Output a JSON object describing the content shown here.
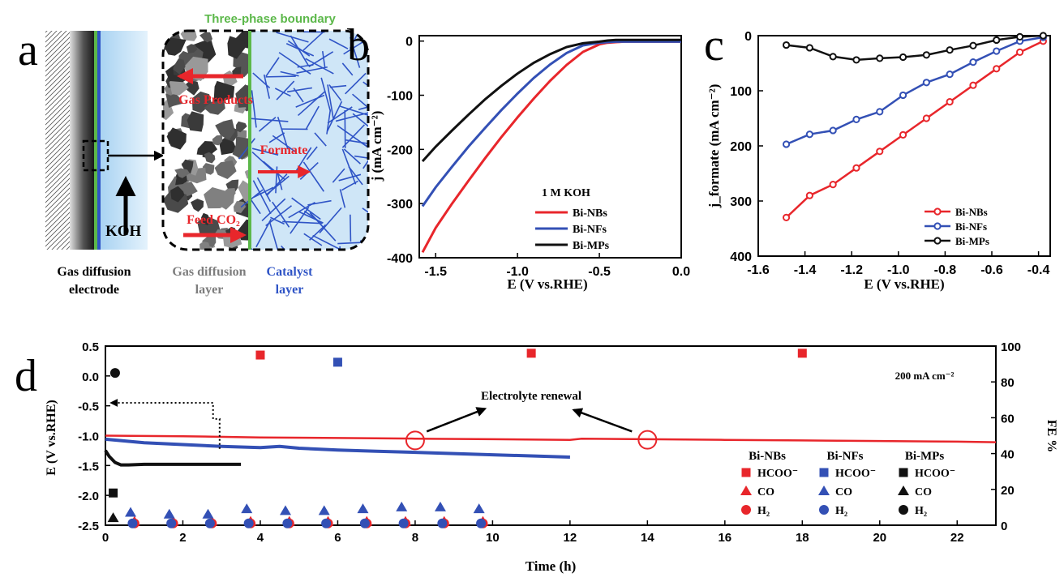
{
  "colors": {
    "bi_nbs": "#e8262b",
    "bi_nfs": "#3350b5",
    "bi_mps": "#111111",
    "boundary": "#5cb84a",
    "catalyst": "#2f54c6",
    "gas": "#7d7d7d",
    "electrolyte": "#cfe6f7"
  },
  "panel_letters": [
    "a",
    "b",
    "c",
    "d"
  ],
  "schematic": {
    "boundary_title": "Three-phase boundary",
    "gas_products": "Gas Products",
    "formate": "Formate",
    "feed_co2": "Feed CO₂",
    "koh": "KOH",
    "gde_label_1": "Gas diffusion",
    "gde_label_2": "electrode",
    "gdl_label_1": "Gas diffusion",
    "gdl_label_2": "layer",
    "cat_label_1": "Catalyst",
    "cat_label_2": "layer"
  },
  "chart_data": [
    {
      "panel": "b",
      "type": "line",
      "xlabel": "E (V vs.RHE)",
      "ylabel": "j (mA cm⁻²)",
      "xlim": [
        -1.6,
        0.0
      ],
      "ylim": [
        -400,
        10
      ],
      "xticks": [
        -1.5,
        -1.0,
        -0.5,
        0.0
      ],
      "xtick_labels": [
        "-1.5",
        "-1.0",
        "-0.5",
        "0.0"
      ],
      "yticks": [
        0,
        -100,
        -200,
        -300,
        -400
      ],
      "ytick_labels": [
        "0",
        "-100",
        "-200",
        "-300",
        "-400"
      ],
      "legend_title": "1 M KOH",
      "legend_position": "lower-right",
      "series": [
        {
          "name": "Bi-NBs",
          "x": [
            -1.58,
            -1.5,
            -1.4,
            -1.3,
            -1.2,
            -1.1,
            -1.0,
            -0.9,
            -0.8,
            -0.7,
            -0.6,
            -0.5,
            -0.45,
            -0.4,
            -0.35,
            -0.3,
            0.0
          ],
          "y": [
            -390,
            -345,
            -300,
            -258,
            -217,
            -178,
            -141,
            -106,
            -73,
            -44,
            -20,
            -6,
            -3,
            -2,
            -1,
            -1,
            -1
          ]
        },
        {
          "name": "Bi-NFs",
          "x": [
            -1.58,
            -1.5,
            -1.4,
            -1.3,
            -1.2,
            -1.1,
            -1.0,
            -0.9,
            -0.8,
            -0.7,
            -0.6,
            -0.5,
            -0.45,
            -0.4,
            -0.3,
            0.0
          ],
          "y": [
            -305,
            -270,
            -232,
            -195,
            -161,
            -128,
            -97,
            -68,
            -43,
            -22,
            -8,
            -3,
            -2,
            -1,
            -1,
            -1
          ]
        },
        {
          "name": "Bi-MPs",
          "x": [
            -1.58,
            -1.5,
            -1.4,
            -1.3,
            -1.2,
            -1.1,
            -1.0,
            -0.9,
            -0.8,
            -0.7,
            -0.6,
            -0.5,
            -0.45,
            -0.4,
            -0.35,
            -0.3,
            0.0
          ],
          "y": [
            -222,
            -195,
            -165,
            -136,
            -108,
            -83,
            -60,
            -40,
            -24,
            -11,
            -4,
            -1,
            1,
            2,
            2,
            2,
            2
          ]
        }
      ]
    },
    {
      "panel": "c",
      "type": "line",
      "xlabel": "E (V vs.RHE)",
      "ylabel": "j_formate (mA cm⁻²)",
      "xlim": [
        -1.6,
        -0.35
      ],
      "ylim": [
        400,
        0
      ],
      "xticks": [
        -1.6,
        -1.4,
        -1.2,
        -1.0,
        -0.8,
        -0.6,
        -0.4
      ],
      "xtick_labels": [
        "-1.6",
        "-1.4",
        "-1.2",
        "-1.0",
        "-0.8",
        "-0.6",
        "-0.4"
      ],
      "yticks": [
        0,
        100,
        200,
        300,
        400
      ],
      "ytick_labels": [
        "0",
        "100",
        "200",
        "300",
        "400"
      ],
      "legend_position": "lower-right",
      "x": [
        -1.48,
        -1.38,
        -1.28,
        -1.18,
        -1.08,
        -0.98,
        -0.88,
        -0.78,
        -0.68,
        -0.58,
        -0.48,
        -0.38
      ],
      "series": [
        {
          "name": "Bi-NBs",
          "values": [
            330,
            290,
            270,
            240,
            210,
            180,
            150,
            120,
            90,
            60,
            30,
            10
          ]
        },
        {
          "name": "Bi-NFs",
          "values": [
            197,
            179,
            172,
            152,
            138,
            108,
            85,
            70,
            48,
            28,
            10,
            3
          ]
        },
        {
          "name": "Bi-MPs",
          "values": [
            17,
            22,
            38,
            44,
            41,
            39,
            35,
            26,
            18,
            8,
            2,
            0
          ]
        }
      ]
    },
    {
      "panel": "d",
      "type": "line",
      "xlabel": "Time (h)",
      "ylabel": "E (V vs.RHE)",
      "ylabel_right": "FE %",
      "annotation_current": "200 mA cm⁻²",
      "annotation_renewal": "Electrolyte renewal",
      "renewal_times": [
        8,
        14
      ],
      "xlim": [
        0,
        23
      ],
      "ylim": [
        -2.5,
        0.5
      ],
      "ylim_right": [
        0,
        100
      ],
      "xticks": [
        0,
        2,
        4,
        6,
        8,
        10,
        12,
        14,
        16,
        18,
        20,
        22
      ],
      "xtick_labels": [
        "0",
        "2",
        "4",
        "6",
        "8",
        "10",
        "12",
        "14",
        "16",
        "18",
        "20",
        "22"
      ],
      "yticks": [
        0.5,
        0.0,
        -0.5,
        -1.0,
        -1.5,
        -2.0,
        -2.5
      ],
      "ytick_labels": [
        "0.5",
        "0.0",
        "-0.5",
        "-1.0",
        "-1.5",
        "-2.0",
        "-2.5"
      ],
      "yticks_right": [
        0,
        20,
        40,
        60,
        80,
        100
      ],
      "ytick_labels_right": [
        "0",
        "20",
        "40",
        "60",
        "80",
        "100"
      ],
      "potential_series": [
        {
          "name": "Bi-NBs",
          "x": [
            0,
            2,
            4,
            6,
            8,
            10,
            12,
            12.3,
            14,
            16,
            18,
            20,
            22,
            23
          ],
          "y": [
            -1.0,
            -1.01,
            -1.03,
            -1.04,
            -1.05,
            -1.06,
            -1.07,
            -1.05,
            -1.06,
            -1.07,
            -1.08,
            -1.09,
            -1.1,
            -1.11
          ]
        },
        {
          "name": "Bi-NFs",
          "x": [
            0,
            1,
            2,
            3,
            4,
            4.5,
            5,
            6,
            7,
            8,
            9,
            10,
            11,
            12
          ],
          "y": [
            -1.06,
            -1.12,
            -1.15,
            -1.18,
            -1.2,
            -1.18,
            -1.21,
            -1.24,
            -1.26,
            -1.28,
            -1.3,
            -1.32,
            -1.34,
            -1.36
          ]
        },
        {
          "name": "Bi-MPs",
          "x": [
            0,
            0.1,
            0.25,
            0.4,
            0.6,
            1,
            2,
            3.5
          ],
          "y": [
            -1.25,
            -1.35,
            -1.45,
            -1.49,
            -1.49,
            -1.48,
            -1.48,
            -1.48
          ]
        }
      ],
      "fe_points": [
        {
          "series": "Bi-NBs",
          "product": "HCOO⁻",
          "x": [
            4,
            11,
            18
          ],
          "y": [
            95,
            96,
            96
          ]
        },
        {
          "series": "Bi-NFs",
          "product": "HCOO⁻",
          "x": [
            6
          ],
          "y": [
            91
          ]
        },
        {
          "series": "Bi-MPs",
          "product": "HCOO⁻",
          "x": [
            0.2
          ],
          "y": [
            18
          ]
        },
        {
          "series": "Bi-NBs",
          "product": "CO",
          "x": [
            0.75,
            1.75,
            2.75,
            3.75,
            4.75,
            5.75,
            6.75,
            7.75,
            8.75,
            9.75
          ],
          "y": [
            2,
            2,
            2,
            2,
            2,
            2,
            2,
            2,
            2,
            2
          ]
        },
        {
          "series": "Bi-NFs",
          "product": "CO",
          "x": [
            0.65,
            1.65,
            2.65,
            3.65,
            4.65,
            5.65,
            6.65,
            7.65,
            8.65,
            9.65
          ],
          "y": [
            7,
            6,
            6,
            9,
            8,
            8,
            9,
            10,
            10,
            9
          ]
        },
        {
          "series": "Bi-MPs",
          "product": "CO",
          "x": [
            0.2
          ],
          "y": [
            4
          ]
        },
        {
          "series": "Bi-NBs",
          "product": "H₂",
          "x": [
            0.75,
            1.75,
            2.75,
            3.75,
            4.75,
            5.75,
            6.75,
            7.75,
            8.75,
            9.75
          ],
          "y": [
            1,
            1,
            1,
            1,
            1,
            1,
            1,
            1,
            1,
            1
          ]
        },
        {
          "series": "Bi-NFs",
          "product": "H₂",
          "x": [
            0.7,
            1.7,
            2.7,
            3.7,
            4.7,
            5.7,
            6.7,
            7.7,
            8.7,
            9.7
          ],
          "y": [
            1,
            1,
            1,
            1,
            1,
            1,
            1,
            1,
            1,
            1
          ]
        },
        {
          "series": "Bi-MPs",
          "product": "H₂",
          "x": [
            0.25
          ],
          "y": [
            85
          ]
        }
      ],
      "legend": {
        "columns": [
          "Bi-NBs",
          "Bi-NFs",
          "Bi-MPs"
        ],
        "rows": [
          "HCOO⁻",
          "CO",
          "H₂"
        ]
      }
    }
  ]
}
